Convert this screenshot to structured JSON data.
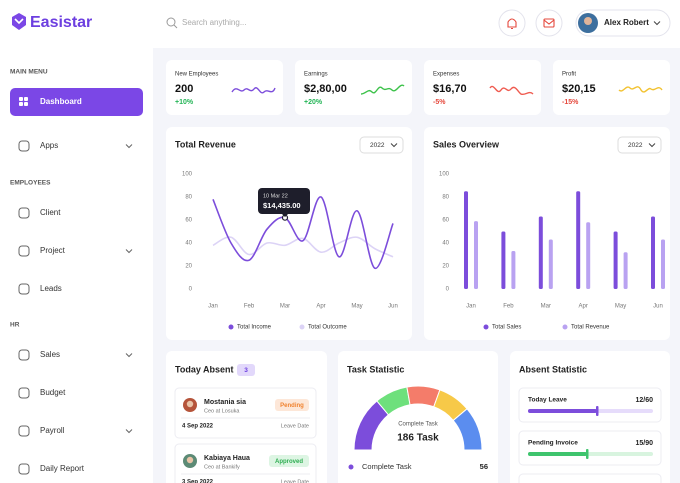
{
  "brand": "Easistar",
  "search_placeholder": "Search anything...",
  "user": "Alex Robert",
  "sidebar": {
    "sections": [
      {
        "title": "MAIN MENU",
        "items": [
          "Dashboard",
          "Apps"
        ]
      },
      {
        "title": "EMPLOYEES",
        "items": [
          "Client",
          "Project",
          "Leads"
        ]
      },
      {
        "title": "HR",
        "items": [
          "Sales",
          "Budget",
          "Payroll",
          "Daily Report"
        ]
      }
    ]
  },
  "stats": [
    {
      "label": "New Employees",
      "value": "200",
      "change": "+10%",
      "color": "#7c4ddb",
      "change_color": "#22b455"
    },
    {
      "label": "Earnings",
      "value": "$2,80,00",
      "change": "+20%",
      "color": "#3cc24a",
      "change_color": "#22b455"
    },
    {
      "label": "Expenses",
      "value": "$16,70",
      "change": "-5%",
      "color": "#ef5b50",
      "change_color": "#e5483c"
    },
    {
      "label": "Profit",
      "value": "$20,15",
      "change": "-15%",
      "color": "#f2c230",
      "change_color": "#e5483c"
    }
  ],
  "revenue_chart": {
    "type": "line",
    "title": "Total Revenue",
    "filter": "2022",
    "categories": [
      "Jan",
      null,
      "Feb",
      null,
      "Mar",
      null,
      "Apr",
      null,
      "May",
      null,
      "Jun"
    ],
    "series": [
      {
        "name": "Total Income",
        "color": "#7c4ddb",
        "values": [
          78,
          40,
          25,
          52,
          62,
          42,
          80,
          28,
          68,
          18,
          57
        ]
      },
      {
        "name": "Total Outcome",
        "color": "#dcd3f6",
        "values": [
          38,
          45,
          30,
          40,
          38,
          44,
          32,
          40,
          45,
          35,
          28
        ]
      }
    ],
    "ylim": [
      0,
      100
    ],
    "yticks": [
      0,
      20,
      40,
      60,
      80,
      100
    ],
    "tooltip": {
      "date": "10 Mar 22",
      "value": "$14,435.00"
    }
  },
  "sales_chart": {
    "type": "bar",
    "title": "Sales Overview",
    "filter": "2022",
    "categories": [
      "Jan",
      "Feb",
      "Mar",
      "Apr",
      "May",
      "Jun"
    ],
    "series": [
      {
        "name": "Total Sales",
        "color": "#7c4ddb",
        "values": [
          85,
          50,
          63,
          85,
          50,
          63
        ]
      },
      {
        "name": "Total Revenue",
        "color": "#b9a2f1",
        "values": [
          59,
          33,
          43,
          58,
          32,
          43
        ]
      }
    ],
    "ylim": [
      0,
      100
    ],
    "yticks": [
      0,
      20,
      40,
      60,
      80,
      100
    ]
  },
  "today_absent": {
    "title": "Today Absent",
    "count": 3,
    "entries": [
      {
        "name": "Mostania sia",
        "role": "Ceo at Losuka",
        "status": "Pending",
        "color": "#f0822e",
        "bg": "#fde7d8",
        "date": "4 Sep 2022",
        "date_label": "Leave Date"
      },
      {
        "name": "Kabiaya Haua",
        "role": "Ceo at Bankify",
        "status": "Approved",
        "color": "#2fae52",
        "bg": "#ddf5e3",
        "date": "3 Sep 2022",
        "date_label": "Leave Date"
      }
    ]
  },
  "task_statistic": {
    "title": "Task Statistic",
    "center_label": "Complete Task",
    "center_value": "186 Task",
    "rows": [
      {
        "label": "Complete Task",
        "value": 56
      }
    ]
  },
  "absent_statistic": {
    "title": "Absent Statistic",
    "items": [
      {
        "label": "Today Leave",
        "value": "12/60",
        "color": "#7c4ddb",
        "track": "#e6dcfb"
      },
      {
        "label": "Pending Invoice",
        "value": "15/90",
        "color": "#3ec46d",
        "track": "#d8f4df"
      }
    ]
  }
}
